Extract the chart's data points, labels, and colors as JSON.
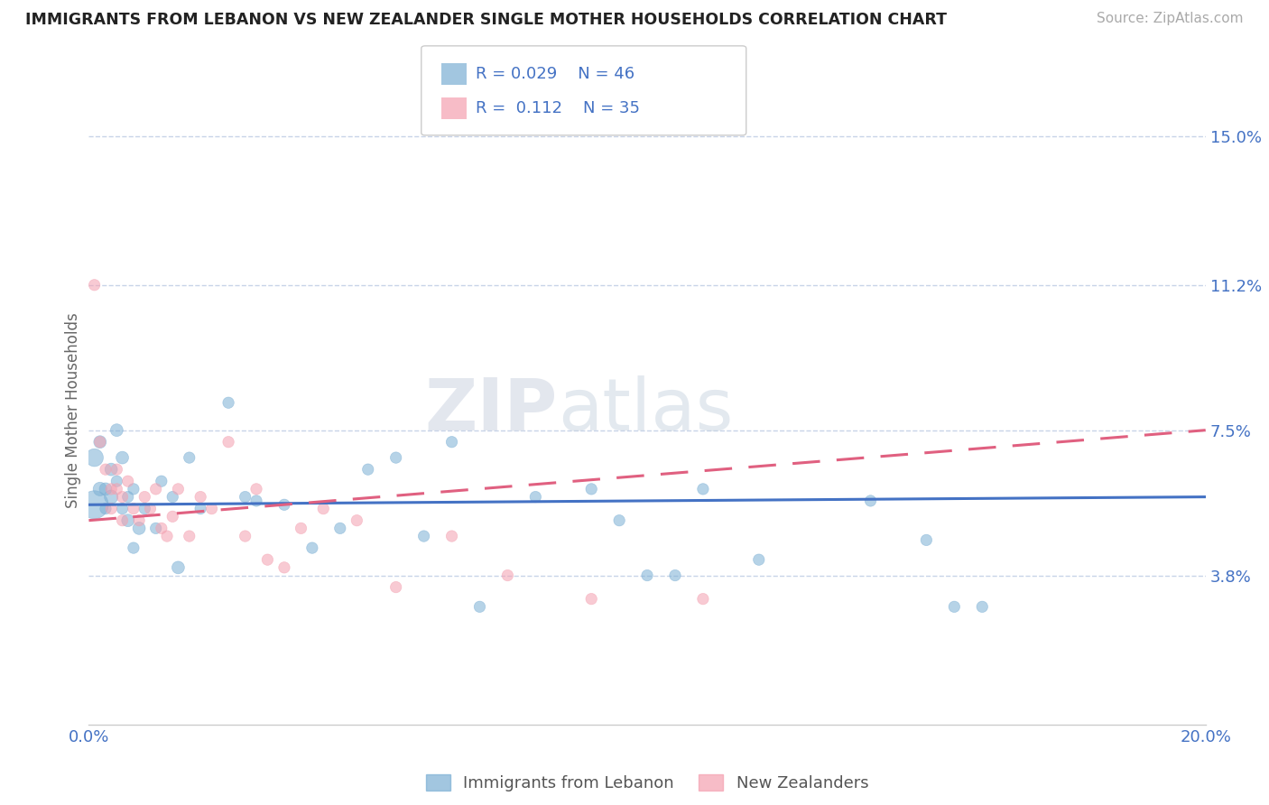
{
  "title": "IMMIGRANTS FROM LEBANON VS NEW ZEALANDER SINGLE MOTHER HOUSEHOLDS CORRELATION CHART",
  "source": "Source: ZipAtlas.com",
  "ylabel": "Single Mother Households",
  "xlim": [
    0.0,
    0.2
  ],
  "ylim": [
    0.0,
    0.16
  ],
  "y_tick_labels_right": [
    "15.0%",
    "11.2%",
    "7.5%",
    "3.8%"
  ],
  "y_tick_vals_right": [
    0.15,
    0.112,
    0.075,
    0.038
  ],
  "legend1_label": "Immigrants from Lebanon",
  "legend2_label": "New Zealanders",
  "r1": "0.029",
  "n1": "46",
  "r2": "0.112",
  "n2": "35",
  "blue_color": "#7bafd4",
  "pink_color": "#f4a0b0",
  "line_blue": "#4472c4",
  "line_pink": "#e06080",
  "watermark_zip": "ZIP",
  "watermark_atlas": "atlas",
  "background_color": "#ffffff",
  "grid_color": "#c8d4e8",
  "blue_scatter_x": [
    0.001,
    0.001,
    0.002,
    0.002,
    0.003,
    0.003,
    0.004,
    0.004,
    0.005,
    0.005,
    0.006,
    0.006,
    0.007,
    0.007,
    0.008,
    0.008,
    0.009,
    0.01,
    0.012,
    0.013,
    0.015,
    0.016,
    0.018,
    0.02,
    0.025,
    0.028,
    0.03,
    0.035,
    0.04,
    0.045,
    0.05,
    0.055,
    0.06,
    0.065,
    0.07,
    0.08,
    0.09,
    0.095,
    0.1,
    0.105,
    0.11,
    0.12,
    0.14,
    0.15,
    0.155,
    0.16
  ],
  "blue_scatter_y": [
    0.056,
    0.068,
    0.06,
    0.072,
    0.06,
    0.055,
    0.058,
    0.065,
    0.075,
    0.062,
    0.068,
    0.055,
    0.058,
    0.052,
    0.06,
    0.045,
    0.05,
    0.055,
    0.05,
    0.062,
    0.058,
    0.04,
    0.068,
    0.055,
    0.082,
    0.058,
    0.057,
    0.056,
    0.045,
    0.05,
    0.065,
    0.068,
    0.048,
    0.072,
    0.03,
    0.058,
    0.06,
    0.052,
    0.038,
    0.038,
    0.06,
    0.042,
    0.057,
    0.047,
    0.03,
    0.03
  ],
  "blue_scatter_size": [
    500,
    200,
    120,
    100,
    100,
    80,
    120,
    100,
    100,
    80,
    100,
    80,
    80,
    100,
    80,
    80,
    100,
    80,
    80,
    80,
    80,
    100,
    80,
    80,
    80,
    80,
    80,
    80,
    80,
    80,
    80,
    80,
    80,
    80,
    80,
    80,
    80,
    80,
    80,
    80,
    80,
    80,
    80,
    80,
    80,
    80
  ],
  "pink_scatter_x": [
    0.001,
    0.002,
    0.003,
    0.004,
    0.004,
    0.005,
    0.005,
    0.006,
    0.006,
    0.007,
    0.008,
    0.009,
    0.01,
    0.011,
    0.012,
    0.013,
    0.014,
    0.015,
    0.016,
    0.018,
    0.02,
    0.022,
    0.025,
    0.028,
    0.03,
    0.032,
    0.035,
    0.038,
    0.042,
    0.048,
    0.055,
    0.065,
    0.075,
    0.09,
    0.11
  ],
  "pink_scatter_y": [
    0.112,
    0.072,
    0.065,
    0.06,
    0.055,
    0.065,
    0.06,
    0.058,
    0.052,
    0.062,
    0.055,
    0.052,
    0.058,
    0.055,
    0.06,
    0.05,
    0.048,
    0.053,
    0.06,
    0.048,
    0.058,
    0.055,
    0.072,
    0.048,
    0.06,
    0.042,
    0.04,
    0.05,
    0.055,
    0.052,
    0.035,
    0.048,
    0.038,
    0.032,
    0.032
  ],
  "pink_scatter_size": [
    80,
    80,
    80,
    80,
    80,
    80,
    80,
    80,
    80,
    80,
    80,
    80,
    80,
    80,
    80,
    80,
    80,
    80,
    80,
    80,
    80,
    80,
    80,
    80,
    80,
    80,
    80,
    80,
    80,
    80,
    80,
    80,
    80,
    80,
    80
  ],
  "blue_line_x": [
    0.0,
    0.2
  ],
  "blue_line_y": [
    0.056,
    0.058
  ],
  "pink_line_x": [
    0.0,
    0.2
  ],
  "pink_line_y": [
    0.052,
    0.075
  ]
}
